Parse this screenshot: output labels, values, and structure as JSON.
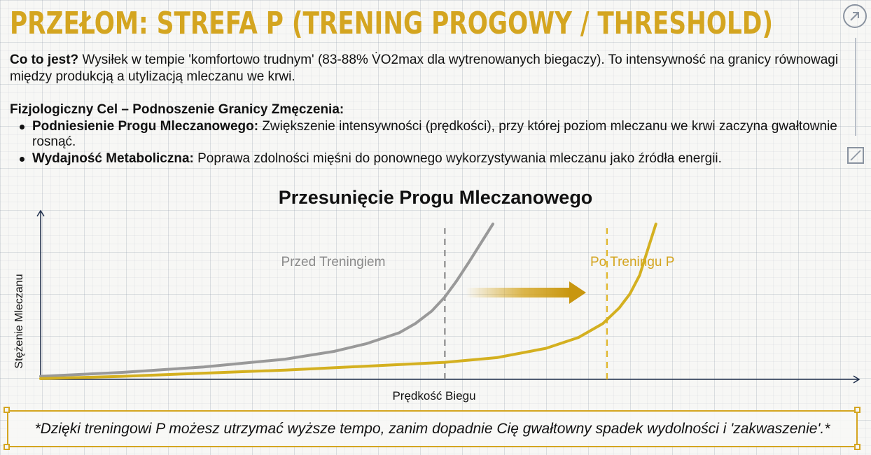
{
  "header": {
    "title": "PRZEŁOM: STREFA P (TRENING PROGOWY / THRESHOLD)"
  },
  "intro": {
    "label": "Co to jest?",
    "text": " Wysiłek w tempie 'komfortowo trudnym' (83-88% V̇O2max dla wytrenowanych biegaczy). To intensywność na granicy równowagi między produkcją a utylizacją mleczanu we krwi."
  },
  "goals": {
    "heading": "Fizjologiczny Cel – Podnoszenie Granicy Zmęczenia:",
    "items": [
      {
        "label": "Podniesienie Progu Mleczanowego:",
        "text": " Zwiększenie intensywności (prędkości), przy której poziom mleczanu we krwi zaczyna gwałtownie rosnąć."
      },
      {
        "label": "Wydajność Metaboliczna:",
        "text": " Poprawa zdolności mięśni do ponownego wykorzystywania mleczanu jako źródła energii."
      }
    ]
  },
  "icons": {
    "top_right": "arrow-up-right-icon",
    "side": "resize-icon"
  },
  "chart_data": {
    "type": "line",
    "title": "Przesunięcie Progu Mleczanowego",
    "xlabel": "Prędkość Biegu",
    "ylabel": "Stężenie Mleczanu",
    "xlim": [
      0,
      100
    ],
    "ylim": [
      0,
      100
    ],
    "grid": true,
    "series": [
      {
        "name": "Przed Treningiem",
        "color": "#999999",
        "x": [
          0,
          10,
          20,
          30,
          36,
          40,
          44,
          46,
          48,
          49.6,
          51,
          52.5,
          55.5
        ],
        "y": [
          2,
          4.5,
          8,
          13,
          18,
          23,
          30,
          36,
          44,
          53,
          63,
          75,
          100
        ],
        "threshold_x": 49.6
      },
      {
        "name": "Po Treningu P",
        "color": "#d4b020",
        "x": [
          0,
          10,
          20,
          30,
          40,
          49.6,
          56,
          62,
          66,
          69,
          71,
          72.3,
          73.5,
          75.5
        ],
        "y": [
          0.5,
          2,
          4,
          6,
          8.5,
          11,
          14,
          20,
          27,
          36,
          46,
          55,
          67,
          100
        ],
        "threshold_x": 69.5
      }
    ],
    "annotation": "arrow from Przed Treningiem threshold to Po Treningu P threshold"
  },
  "callout": {
    "text": "*Dzięki treningowi P możesz utrzymać wyższe tempo, zanim dopadnie Cię gwałtowny spadek wydolności i 'zakwaszenie'.*"
  }
}
